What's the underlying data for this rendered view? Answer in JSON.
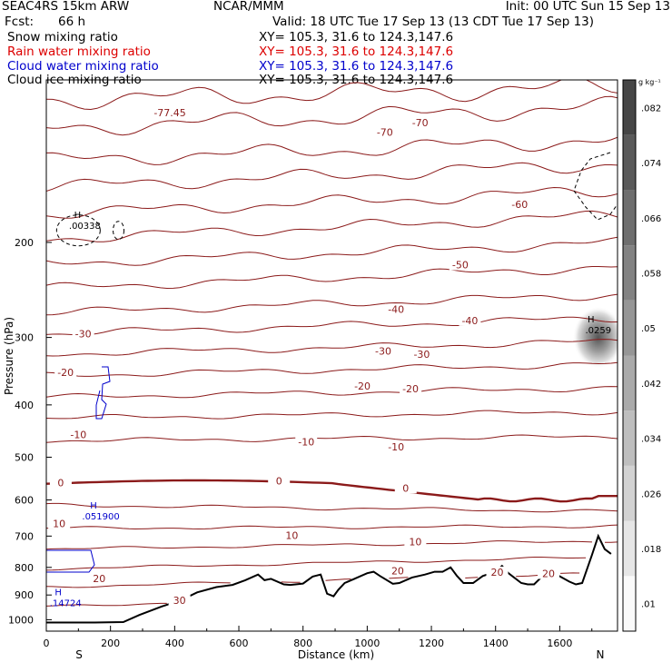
{
  "header": {
    "model": "SEAC4RS 15km ARW",
    "center": "NCAR/MMM",
    "init": "Init: 00 UTC Sun 15 Sep 13",
    "fcst_label": "Fcst:",
    "fcst_value": "66 h",
    "valid": "Valid: 18 UTC Tue 17 Sep 13 (13 CDT Tue 17 Sep 13)"
  },
  "fields": [
    {
      "label": "Snow mixing ratio",
      "xy": "XY= 105.3, 31.6 to 124.3,147.6",
      "color": "#000000"
    },
    {
      "label": "Rain water mixing ratio",
      "xy": "XY= 105.3, 31.6 to 124.3,147.6",
      "color": "#dd0000"
    },
    {
      "label": "Cloud water mixing ratio",
      "xy": "XY= 105.3, 31.6 to 124.3,147.6",
      "color": "#0000cc"
    },
    {
      "label": "Cloud ice mixing ratio",
      "xy": "XY= 105.3, 31.6 to 124.3,147.6",
      "color": "#000000"
    }
  ],
  "chart_data": {
    "type": "cross-section contour",
    "xlabel": "Distance (km)",
    "ylabel": "Pressure (hPa)",
    "xlim": [
      0,
      1780
    ],
    "ylim": [
      1050,
      100
    ],
    "x_ticks": [
      0,
      200,
      400,
      600,
      800,
      1000,
      1200,
      1400,
      1600
    ],
    "y_ticks": [
      200,
      300,
      400,
      500,
      600,
      700,
      800,
      900,
      1000
    ],
    "end_labels": {
      "left": "S",
      "right": "N"
    },
    "temperature_contour_color": "#8b1a1a",
    "temperature_interval_C": 5,
    "temperature_contours": [
      {
        "temp": -75,
        "p": [
          109,
          103
        ]
      },
      {
        "temp": -70,
        "p": [
          123,
          112
        ]
      },
      {
        "temp": -65,
        "p": [
          141,
          129
        ]
      },
      {
        "temp": -60,
        "p": [
          158,
          143
        ]
      },
      {
        "temp": -55,
        "p": [
          177,
          160
        ]
      },
      {
        "temp": -50,
        "p": [
          197,
          178
        ]
      },
      {
        "temp": -45,
        "p": [
          219,
          200
        ]
      },
      {
        "temp": -40,
        "p": [
          243,
          222
        ]
      },
      {
        "temp": -35,
        "p": [
          270,
          250
        ]
      },
      {
        "temp": -30,
        "p": [
          295,
          276
        ]
      },
      {
        "temp": -25,
        "p": [
          322,
          305
        ]
      },
      {
        "temp": -20,
        "p": [
          353,
          336
        ]
      },
      {
        "temp": -15,
        "p": [
          387,
          372
        ]
      },
      {
        "temp": -10,
        "p": [
          423,
          412
        ]
      },
      {
        "temp": -5,
        "p": [
          466,
          458
        ]
      },
      {
        "temp": 0,
        "p": [
          560,
          600
        ]
      },
      {
        "temp": 5,
        "p": [
          613,
          630
        ]
      },
      {
        "temp": 10,
        "p": [
          677,
          671
        ]
      },
      {
        "temp": 15,
        "p": [
          740,
          714
        ]
      },
      {
        "temp": 20,
        "p": [
          805,
          765
        ]
      },
      {
        "temp": 25,
        "p": [
          870,
          820
        ]
      },
      {
        "temp": 30,
        "p": [
          945,
          880
        ]
      }
    ],
    "contour_labels": [
      {
        "text": "-77.45",
        "x": 385,
        "p": 115
      },
      {
        "text": "-70",
        "x": 1055,
        "p": 125
      },
      {
        "text": "-70",
        "x": 1165,
        "p": 120
      },
      {
        "text": "-60",
        "x": 1475,
        "p": 170
      },
      {
        "text": "-50",
        "x": 1290,
        "p": 220
      },
      {
        "text": "-40",
        "x": 1090,
        "p": 266
      },
      {
        "text": "-40",
        "x": 1320,
        "p": 279
      },
      {
        "text": "-30",
        "x": 115,
        "p": 295
      },
      {
        "text": "-30",
        "x": 1050,
        "p": 318
      },
      {
        "text": "-30",
        "x": 1170,
        "p": 322
      },
      {
        "text": "-20",
        "x": 60,
        "p": 348
      },
      {
        "text": "-20",
        "x": 985,
        "p": 369
      },
      {
        "text": "-20",
        "x": 1135,
        "p": 373
      },
      {
        "text": "-10",
        "x": 100,
        "p": 454
      },
      {
        "text": "-10",
        "x": 810,
        "p": 468
      },
      {
        "text": "-10",
        "x": 1090,
        "p": 478
      },
      {
        "text": "0",
        "x": 45,
        "p": 557
      },
      {
        "text": "0",
        "x": 725,
        "p": 553
      },
      {
        "text": "0",
        "x": 1120,
        "p": 570
      },
      {
        "text": "10",
        "x": 40,
        "p": 663
      },
      {
        "text": "10",
        "x": 765,
        "p": 698
      },
      {
        "text": "10",
        "x": 1150,
        "p": 717
      },
      {
        "text": "20",
        "x": 165,
        "p": 839
      },
      {
        "text": "20",
        "x": 1095,
        "p": 812
      },
      {
        "text": "20",
        "x": 1405,
        "p": 816
      },
      {
        "text": "20",
        "x": 1565,
        "p": 821
      },
      {
        "text": "30",
        "x": 415,
        "p": 921
      }
    ],
    "terrain": {
      "x": [
        0,
        150,
        240,
        290,
        360,
        420,
        470,
        530,
        580,
        620,
        660,
        680,
        700,
        740,
        760,
        800,
        830,
        855,
        875,
        895,
        910,
        930,
        960,
        1000,
        1020,
        1040,
        1080,
        1100,
        1140,
        1180,
        1210,
        1235,
        1260,
        1280,
        1300,
        1330,
        1360,
        1400,
        1420,
        1440,
        1480,
        1500,
        1520,
        1560,
        1590,
        1630,
        1650,
        1670,
        1700,
        1720,
        1740,
        1760
      ],
      "p": [
        1012,
        1012,
        1010,
        980,
        945,
        920,
        890,
        870,
        862,
        845,
        825,
        845,
        840,
        860,
        862,
        857,
        832,
        825,
        895,
        905,
        880,
        855,
        840,
        820,
        815,
        830,
        858,
        855,
        835,
        825,
        815,
        815,
        800,
        830,
        855,
        855,
        830,
        815,
        795,
        820,
        855,
        860,
        860,
        815,
        825,
        850,
        860,
        855,
        760,
        700,
        740,
        755
      ]
    },
    "extrema_labels": [
      {
        "field": "Snow mixing ratio",
        "value": "H .00338",
        "x": 120,
        "p": 186
      },
      {
        "field": "Snow mixing ratio",
        "value": "H .0259",
        "x": 1720,
        "p": 290
      },
      {
        "field": "Cloud water mixing ratio",
        "value": "H .051900",
        "x": 170,
        "p": 642
      },
      {
        "field": "Cloud water mixing ratio",
        "value": "H .14724",
        "x": 60,
        "p": 930
      }
    ],
    "snow_shading_max": {
      "x": 1720,
      "p": 300
    },
    "colorbar": {
      "unit": "g kg⁻¹",
      "levels": [
        0.01,
        0.018,
        0.026,
        0.034,
        0.042,
        0.05,
        0.058,
        0.066,
        0.074,
        0.082
      ],
      "labels": [
        ".01",
        ".018",
        ".026",
        ".034",
        ".042",
        ".05",
        ".058",
        ".066",
        ".074",
        ".082"
      ]
    }
  }
}
